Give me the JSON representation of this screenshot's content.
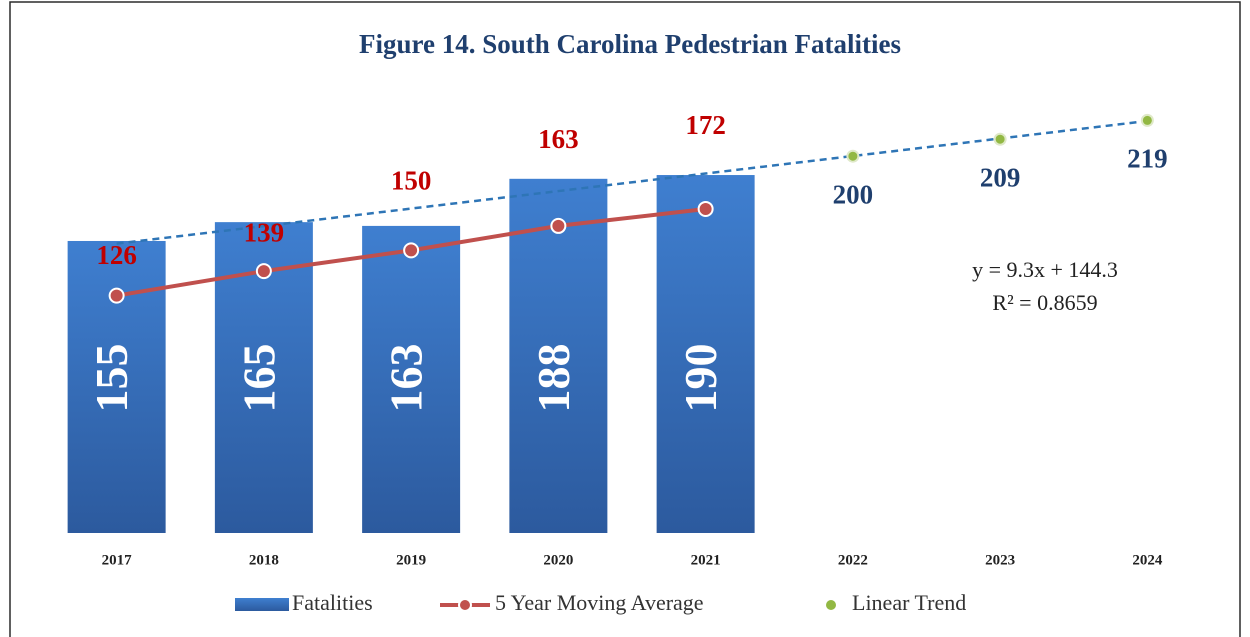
{
  "chart_data": {
    "type": "bar",
    "title": "Figure 14. South Carolina Pedestrian Fatalities",
    "categories": [
      "2017",
      "2018",
      "2019",
      "2020",
      "2021",
      "2022",
      "2023",
      "2024"
    ],
    "series": [
      {
        "name": "Fatalities",
        "type": "bar",
        "color": "#3a74c2",
        "values": [
          155,
          165,
          163,
          188,
          190,
          null,
          null,
          null
        ]
      },
      {
        "name": "5 Year Moving Average",
        "type": "line",
        "color": "#c0504d",
        "values": [
          126,
          139,
          150,
          163,
          172,
          null,
          null,
          null
        ]
      },
      {
        "name": "Linear Trend",
        "type": "scatter",
        "color": "#92b843",
        "values": [
          null,
          null,
          null,
          null,
          null,
          200,
          209,
          219
        ]
      }
    ],
    "trendline": {
      "color": "#2e75b6",
      "values": [
        153.6,
        162.9,
        172.2,
        181.5,
        190.8,
        200.1,
        209.4,
        218.7
      ]
    },
    "annotations": [
      "y = 9.3x + 144.3",
      "R² = 0.8659"
    ],
    "ylim": [
      0,
      250
    ],
    "legend": "bottom"
  }
}
